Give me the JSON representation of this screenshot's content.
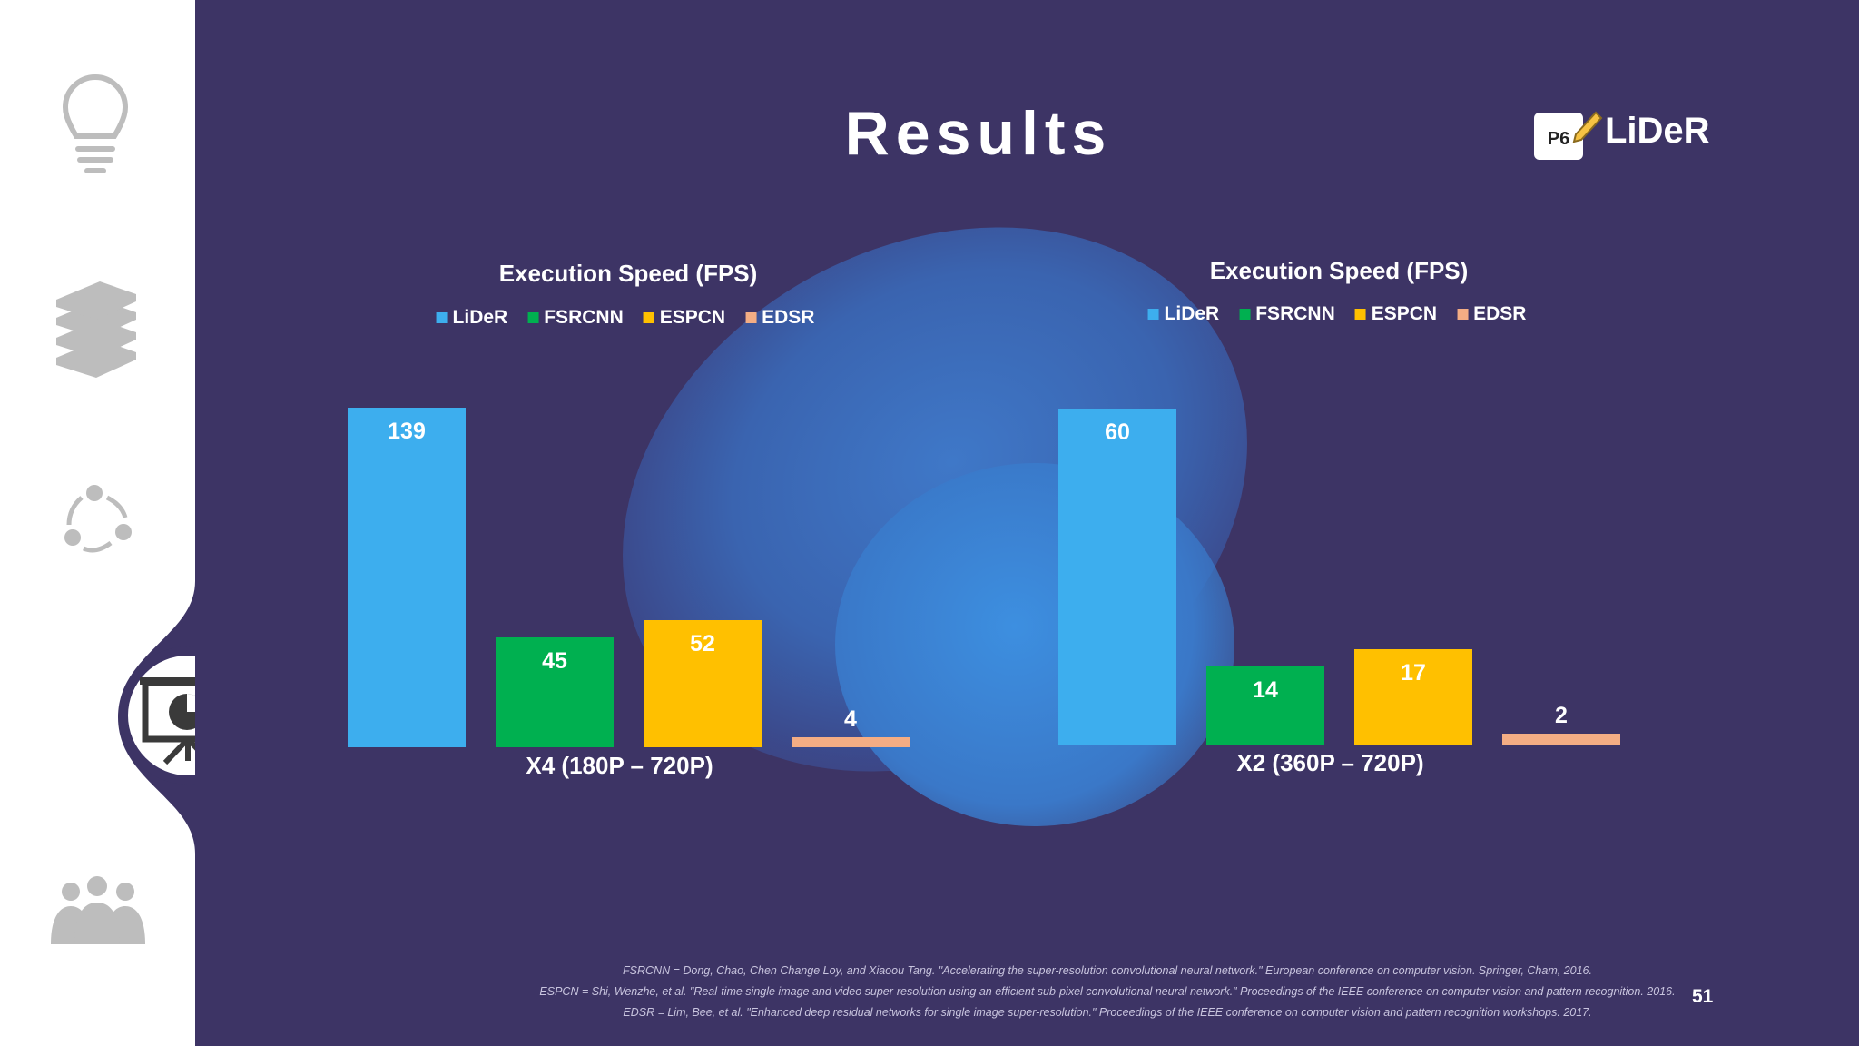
{
  "title": "Results",
  "logo": {
    "badge": "P6",
    "text": "LiDeR"
  },
  "sidebar": {
    "icons": [
      "lightbulb-icon",
      "books-icon",
      "cycle-icon",
      "presentation-chart-icon",
      "people-icon"
    ],
    "active_index": 3
  },
  "colors": {
    "LiDeR": "#3daeee",
    "FSRCNN": "#00b050",
    "ESPCN": "#ffc000",
    "EDSR": "#f4ad84"
  },
  "chart_data": [
    {
      "type": "bar",
      "title": "Execution Speed (FPS)",
      "legend": [
        "LiDeR",
        "FSRCNN",
        "ESPCN",
        "EDSR"
      ],
      "categories": [
        "X4 (180P – 720P)"
      ],
      "series": [
        {
          "name": "LiDeR",
          "values": [
            139
          ]
        },
        {
          "name": "FSRCNN",
          "values": [
            45
          ]
        },
        {
          "name": "ESPCN",
          "values": [
            52
          ]
        },
        {
          "name": "EDSR",
          "values": [
            4
          ]
        }
      ],
      "ylim": [
        0,
        139
      ]
    },
    {
      "type": "bar",
      "title": "Execution Speed (FPS)",
      "legend": [
        "LiDeR",
        "FSRCNN",
        "ESPCN",
        "EDSR"
      ],
      "categories": [
        "X2 (360P – 720P)"
      ],
      "series": [
        {
          "name": "LiDeR",
          "values": [
            60
          ]
        },
        {
          "name": "FSRCNN",
          "values": [
            14
          ]
        },
        {
          "name": "ESPCN",
          "values": [
            17
          ]
        },
        {
          "name": "EDSR",
          "values": [
            2
          ]
        }
      ],
      "ylim": [
        0,
        60
      ]
    }
  ],
  "references": [
    "FSRCNN = Dong, Chao, Chen Change Loy, and Xiaoou Tang. \"Accelerating the super-resolution convolutional neural network.\" European conference on computer vision. Springer, Cham, 2016.",
    "ESPCN = Shi, Wenzhe, et al. \"Real-time single image and video super-resolution using an efficient sub-pixel convolutional neural network.\" Proceedings of the IEEE conference on computer vision and pattern recognition. 2016.",
    "EDSR = Lim, Bee, et al. \"Enhanced deep residual networks for single image super-resolution.\" Proceedings of the IEEE conference on computer vision and pattern recognition workshops. 2017."
  ],
  "page_number": "51"
}
